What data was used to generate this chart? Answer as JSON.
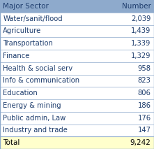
{
  "col1_header": "Major Sector",
  "col2_header": "Number",
  "rows": [
    [
      "Water/sanit/flood",
      "2,039"
    ],
    [
      "Agriculture",
      "1,439"
    ],
    [
      "Transportation",
      "1,339"
    ],
    [
      "Finance",
      "1,329"
    ],
    [
      "Health & social serv",
      "958"
    ],
    [
      "Info & communication",
      "823"
    ],
    [
      "Education",
      "806"
    ],
    [
      "Energy & mining",
      "186"
    ],
    [
      "Public admin, Law",
      "176"
    ],
    [
      "Industry and trade",
      "147"
    ]
  ],
  "total_label": "Total",
  "total_value": "9,242",
  "header_bg": "#8eaacc",
  "row_text_color": "#1f3e6e",
  "header_text_color": "#1f3e6e",
  "total_bg": "#ffffcc",
  "total_text_color": "#000000",
  "divider_color": "#8eaacc",
  "row_bg": "#ffffff",
  "figsize": [
    2.21,
    2.13
  ],
  "dpi": 100
}
